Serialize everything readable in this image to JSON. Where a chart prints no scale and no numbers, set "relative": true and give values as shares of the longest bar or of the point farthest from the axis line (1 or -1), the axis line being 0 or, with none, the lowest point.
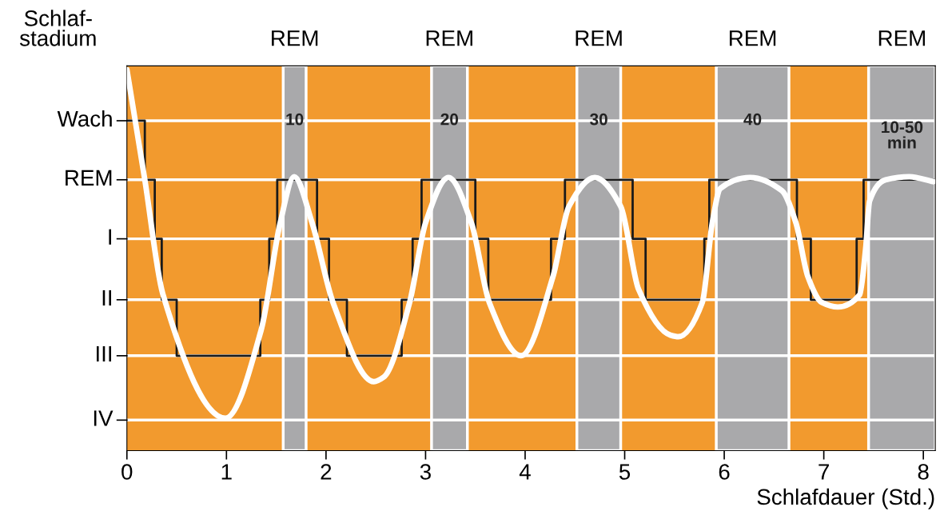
{
  "chart_data": {
    "type": "line",
    "xlabel": "Schlafdauer (Std.)",
    "ylabel": "Schlaf-\nstadium",
    "xlim": [
      0,
      8.12
    ],
    "xticks": [
      0,
      1,
      2,
      3,
      4,
      5,
      6,
      7,
      8
    ],
    "relative": true,
    "series": [
      {
        "type": "step",
        "color": "#1a1a1a",
        "x": [
          0,
          0.18,
          0.28,
          0.35,
          0.5,
          1.34,
          1.43,
          1.51,
          1.91,
          2.03,
          2.21,
          2.76,
          2.87,
          2.96,
          3.5,
          3.63,
          4.26,
          4.4,
          5.08,
          5.21,
          5.8,
          5.85,
          6.73,
          6.87,
          7.33,
          7.4,
          8.1
        ],
        "values": [
          0.866,
          0.711,
          0.556,
          0.396,
          0.249,
          0.396,
          0.556,
          0.711,
          0.556,
          0.396,
          0.249,
          0.396,
          0.556,
          0.711,
          0.556,
          0.396,
          0.556,
          0.711,
          0.556,
          0.396,
          0.556,
          0.711,
          0.556,
          0.396,
          0.556,
          0.711,
          0.711
        ]
      },
      {
        "color": "#ffffff",
        "x": [
          0,
          0.18,
          0.36,
          0.99,
          1.35,
          1.54,
          1.68,
          1.86,
          2.07,
          2.48,
          2.58,
          2.84,
          3.0,
          3.23,
          3.46,
          3.64,
          3.96,
          4.28,
          4.44,
          4.7,
          4.96,
          5.14,
          5.46,
          5.54,
          5.78,
          5.88,
          5.96,
          6.26,
          6.58,
          6.72,
          6.84,
          6.98,
          7.14,
          7.36,
          7.42,
          7.46,
          7.62,
          7.86,
          8.1
        ],
        "values": [
          1.0,
          0.711,
          0.412,
          0.085,
          0.318,
          0.598,
          0.719,
          0.598,
          0.389,
          0.181,
          0.193,
          0.389,
          0.598,
          0.717,
          0.598,
          0.389,
          0.249,
          0.457,
          0.641,
          0.717,
          0.641,
          0.423,
          0.303,
          0.299,
          0.389,
          0.598,
          0.688,
          0.717,
          0.682,
          0.598,
          0.457,
          0.389,
          0.377,
          0.409,
          0.529,
          0.655,
          0.711,
          0.719,
          0.706
        ]
      }
    ],
    "ref_lines": [
      {
        "axis": "y",
        "value": 0.866,
        "label": "Wach",
        "color": "#ffffff"
      },
      {
        "axis": "y",
        "value": 0.711,
        "label": "REM",
        "color": "#ffffff"
      },
      {
        "axis": "y",
        "value": 0.556,
        "label": "I",
        "color": "#ffffff"
      },
      {
        "axis": "y",
        "value": 0.396,
        "label": "II",
        "color": "#ffffff"
      },
      {
        "axis": "y",
        "value": 0.249,
        "label": "III",
        "color": "#ffffff"
      },
      {
        "axis": "y",
        "value": 0.08,
        "label": "IV",
        "color": "#ffffff"
      }
    ],
    "bands": [
      {
        "axis": "x",
        "from": 1.57,
        "to": 1.8,
        "label": "REM",
        "color": "#a9a9ab"
      },
      {
        "axis": "x",
        "from": 3.06,
        "to": 3.42,
        "label": "REM",
        "color": "#a9a9ab"
      },
      {
        "axis": "x",
        "from": 4.52,
        "to": 4.96,
        "label": "REM",
        "color": "#a9a9ab"
      },
      {
        "axis": "x",
        "from": 5.92,
        "to": 6.65,
        "label": "REM",
        "color": "#a9a9ab"
      },
      {
        "axis": "x",
        "from": 7.45,
        "to": 8.12,
        "label": "REM",
        "color": "#a9a9ab"
      }
    ],
    "annotations": [
      "10",
      "20",
      "30",
      "40",
      "10-50\nmin"
    ]
  }
}
